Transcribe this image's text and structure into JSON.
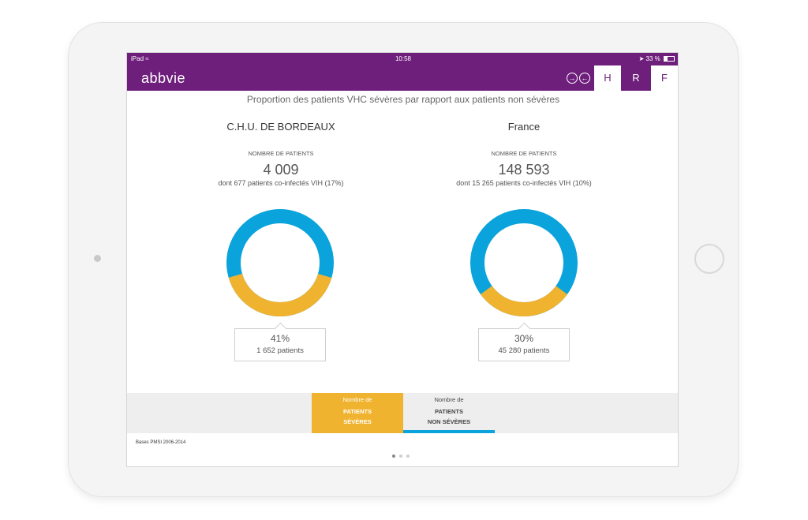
{
  "status_bar": {
    "device": "iPad",
    "wifi_icon": "wifi-icon",
    "time": "10:58",
    "battery": "33 %",
    "location_icon": "location-arrow-icon"
  },
  "nav": {
    "logo": "abbvie",
    "tabs": [
      "H",
      "R",
      "F"
    ],
    "active_tab": "H"
  },
  "page_title": "Proportion des patients VHC sévères par rapport aux patients non sévères",
  "panels": [
    {
      "heading": "C.H.U. DE BORDEAUX",
      "label": "NOMBRE DE PATIENTS",
      "count": "4 009",
      "subtext": "dont 677 patients co-infectés VIH (17%)",
      "severe_fraction": 0.41,
      "callout_pct": "41%",
      "callout_patients": "1 652 patients"
    },
    {
      "heading": "France",
      "label": "NOMBRE DE PATIENTS",
      "count": "148 593",
      "subtext": "dont 15 265 patients co-infectés VIH (10%)",
      "severe_fraction": 0.3,
      "callout_pct": "30%",
      "callout_patients": "45 280 patients"
    }
  ],
  "legend": {
    "severe": {
      "line1": "Nombre de",
      "line2": "PATIENTS",
      "line3": "SÉVÈRES"
    },
    "non_severe": {
      "line1": "Nombre de",
      "line2": "PATIENTS",
      "line3": "NON SÉVÈRES"
    }
  },
  "footer": {
    "source": "Bases PMSI 2006-2014"
  },
  "pagination": {
    "pages": 3,
    "current": 1
  },
  "colors": {
    "brand": "#6e1f7c",
    "severe": "#f0b330",
    "non_severe": "#0aa3dc"
  }
}
